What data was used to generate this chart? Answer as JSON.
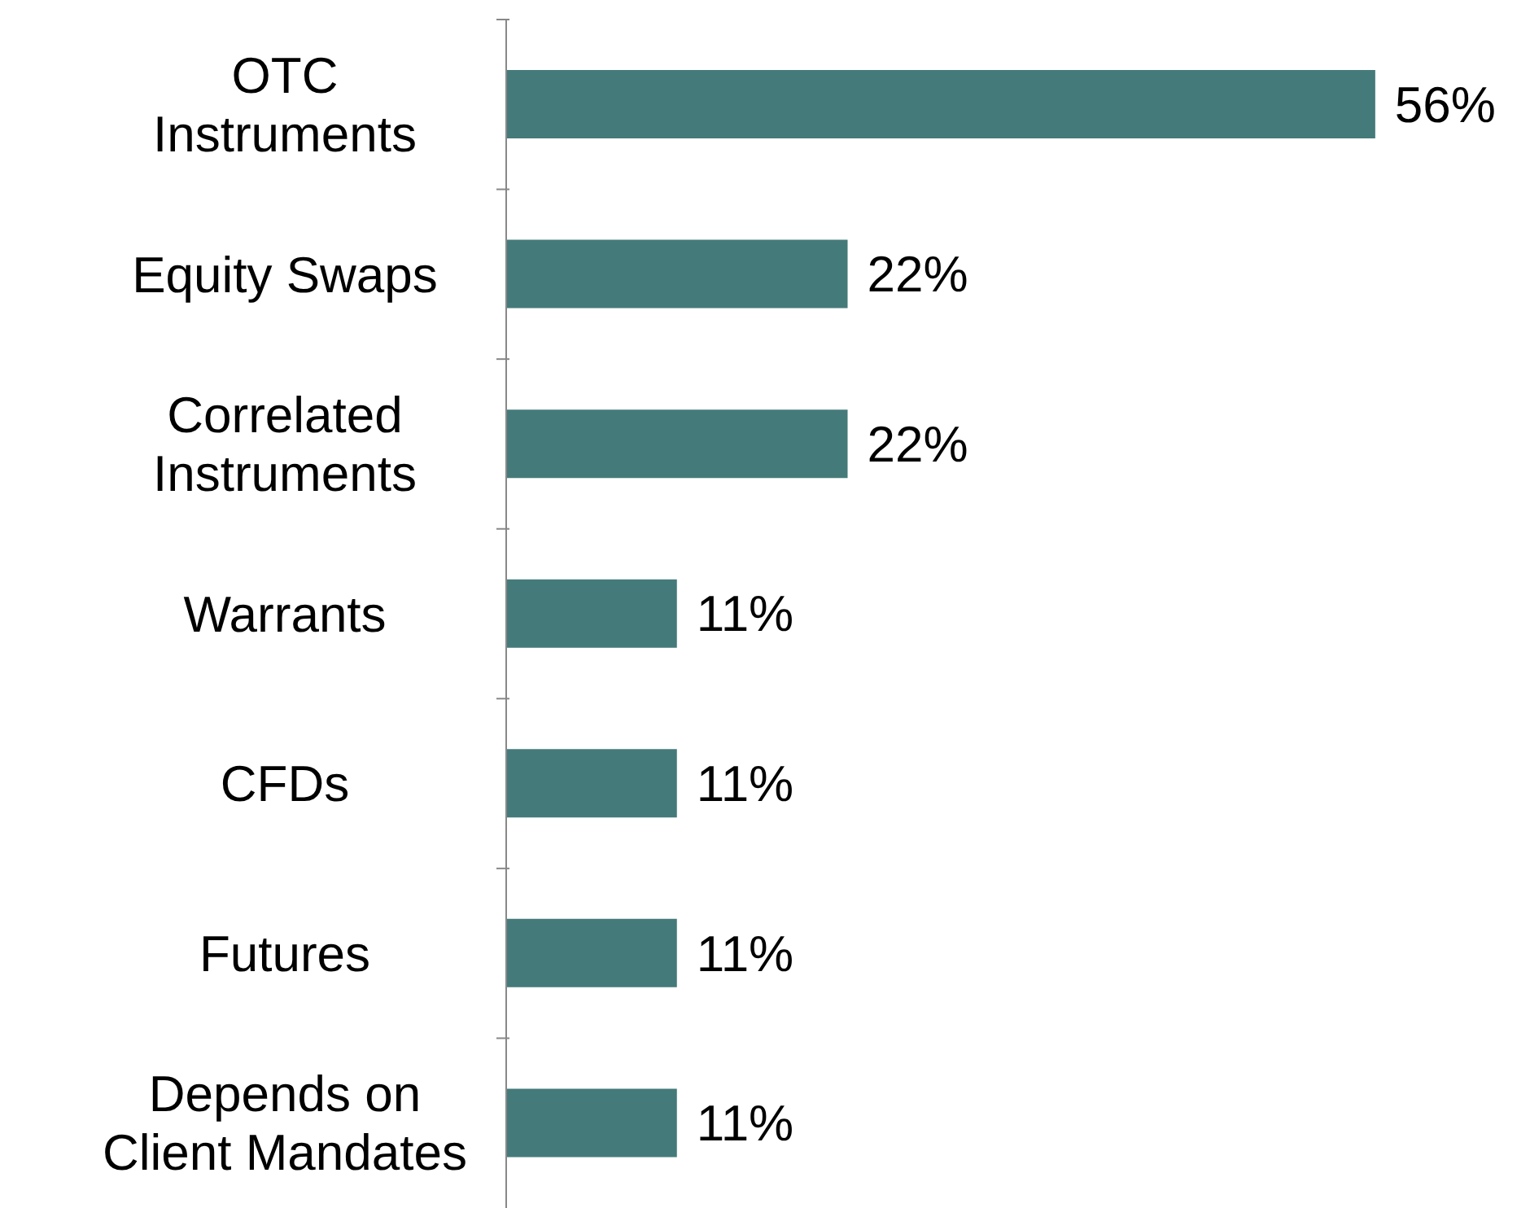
{
  "chart_data": {
    "type": "bar",
    "orientation": "horizontal",
    "categories": [
      "OTC\nInstruments",
      "Equity Swaps",
      "Correlated\nInstruments",
      "Warrants",
      "CFDs",
      "Futures",
      "Depends on\nClient Mandates"
    ],
    "values": [
      56,
      22,
      22,
      11,
      11,
      11,
      11
    ],
    "value_labels": [
      "56%",
      "22%",
      "22%",
      "11%",
      "11%",
      "11%",
      "11%"
    ],
    "color": "#457a7a",
    "tick_labels": "y"
  }
}
